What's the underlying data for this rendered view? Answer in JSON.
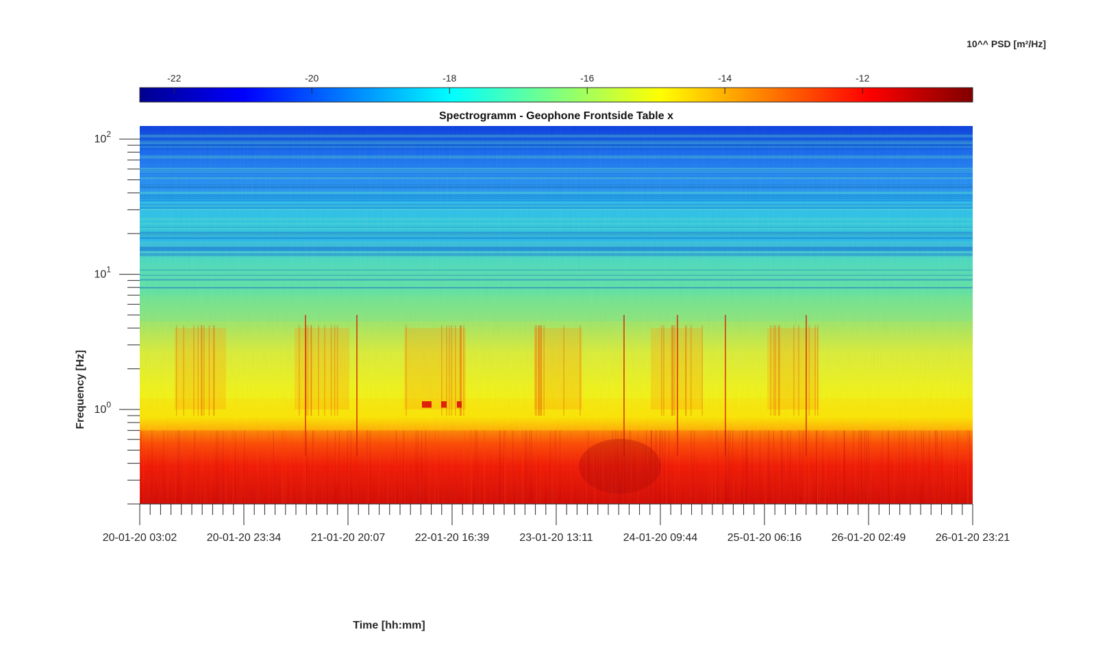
{
  "chart_data": {
    "type": "heatmap",
    "title": "Spectrogramm - Geophone Frontside Table x",
    "xlabel": "Time [hh:mm]",
    "ylabel": "Frequency [Hz]",
    "colorbar": {
      "label": "10^^ PSD [m²/Hz]",
      "range": [
        -22.5,
        -10.4
      ],
      "ticks": [
        -22,
        -20,
        -18,
        -16,
        -14,
        -12
      ],
      "colormap": "jet",
      "placement": "top"
    },
    "x_ticks": [
      "20-01-20 03:02",
      "20-01-20 23:34",
      "21-01-20 20:07",
      "22-01-20 16:39",
      "23-01-20 13:11",
      "24-01-20 09:44",
      "25-01-20 06:16",
      "26-01-20 02:49",
      "26-01-20 23:21"
    ],
    "x_range": [
      "20-01-20 03:02",
      "26-01-20 23:21"
    ],
    "y_scale": "log",
    "y_range": [
      0.2,
      125
    ],
    "y_ticks": [
      {
        "value": 1,
        "base": "10",
        "exp": "0"
      },
      {
        "value": 10,
        "base": "10",
        "exp": "1"
      },
      {
        "value": 100,
        "base": "10",
        "exp": "2"
      }
    ],
    "frequency_bands": [
      {
        "f_low": 0.2,
        "f_high": 0.7,
        "psd": -11.8
      },
      {
        "f_low": 0.7,
        "f_high": 1.2,
        "psd": -14.5
      },
      {
        "f_low": 1.2,
        "f_high": 4.5,
        "psd": -15.2
      },
      {
        "f_low": 4.5,
        "f_high": 7,
        "psd": -16.2
      },
      {
        "f_low": 7,
        "f_high": 17,
        "psd": -16.8
      },
      {
        "f_low": 17,
        "f_high": 40,
        "psd": -18.6
      },
      {
        "f_low": 40,
        "f_high": 125,
        "psd": -20.4
      }
    ],
    "grid": false
  }
}
